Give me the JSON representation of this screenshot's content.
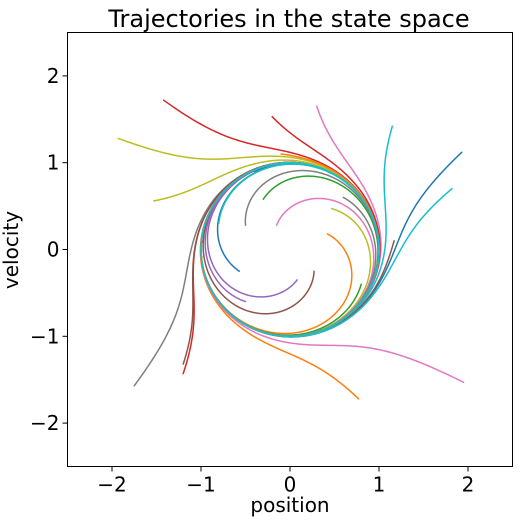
{
  "chart_data": {
    "type": "line",
    "title": "Trajectories in the state space",
    "xlabel": "position",
    "ylabel": "velocity",
    "xlim": [
      -2.5,
      2.5
    ],
    "ylim": [
      -2.5,
      2.5
    ],
    "xticks": [
      -2,
      -1,
      0,
      1,
      2
    ],
    "yticks": [
      -2,
      -1,
      0,
      1,
      2
    ],
    "xtick_labels": [
      "−2",
      "−1",
      "0",
      "1",
      "2"
    ],
    "ytick_labels": [
      "−2",
      "−1",
      "0",
      "1",
      "2"
    ],
    "grid": false,
    "limit_cycle_radius": 1.0,
    "series": [
      {
        "color": "#1f77b4",
        "start": [
          1.93,
          1.12
        ]
      },
      {
        "color": "#ff7f0e",
        "start": [
          0.77,
          -1.72
        ]
      },
      {
        "color": "#2ca02c",
        "start": [
          -0.3,
          0.58
        ]
      },
      {
        "color": "#d62728",
        "start": [
          -1.42,
          1.72
        ]
      },
      {
        "color": "#9467bd",
        "start": [
          0.08,
          -0.35
        ]
      },
      {
        "color": "#8c564b",
        "start": [
          0.27,
          -0.25
        ]
      },
      {
        "color": "#e377c2",
        "start": [
          0.3,
          1.65
        ]
      },
      {
        "color": "#7f7f7f",
        "start": [
          -1.75,
          -1.57
        ]
      },
      {
        "color": "#bcbd22",
        "start": [
          -1.93,
          1.28
        ]
      },
      {
        "color": "#17becf",
        "start": [
          1.15,
          1.42
        ]
      },
      {
        "color": "#1f77b4",
        "start": [
          -0.57,
          -0.25
        ]
      },
      {
        "color": "#ff7f0e",
        "start": [
          0.42,
          0.18
        ]
      },
      {
        "color": "#2ca02c",
        "start": [
          -0.72,
          0.57
        ]
      },
      {
        "color": "#d62728",
        "start": [
          -1.2,
          -1.43
        ]
      },
      {
        "color": "#9467bd",
        "start": [
          -0.08,
          1.0
        ]
      },
      {
        "color": "#8c564b",
        "start": [
          1.17,
          0.1
        ]
      },
      {
        "color": "#e377c2",
        "start": [
          1.95,
          -1.53
        ]
      },
      {
        "color": "#7f7f7f",
        "start": [
          -0.5,
          0.28
        ]
      },
      {
        "color": "#bcbd22",
        "start": [
          0.47,
          0.47
        ]
      },
      {
        "color": "#17becf",
        "start": [
          1.82,
          0.7
        ]
      },
      {
        "color": "#1f77b4",
        "start": [
          -0.4,
          0.9
        ]
      },
      {
        "color": "#ff7f0e",
        "start": [
          -0.1,
          1.1
        ]
      },
      {
        "color": "#2ca02c",
        "start": [
          0.8,
          -0.4
        ]
      },
      {
        "color": "#d62728",
        "start": [
          -0.2,
          1.53
        ]
      },
      {
        "color": "#9467bd",
        "start": [
          -0.5,
          -0.6
        ]
      },
      {
        "color": "#8c564b",
        "start": [
          -1.2,
          -1.32
        ]
      },
      {
        "color": "#e377c2",
        "start": [
          -0.15,
          0.28
        ]
      },
      {
        "color": "#7f7f7f",
        "start": [
          0.6,
          0.6
        ]
      },
      {
        "color": "#bcbd22",
        "start": [
          -1.53,
          0.56
        ]
      },
      {
        "color": "#17becf",
        "start": [
          -0.8,
          0.3
        ]
      }
    ]
  }
}
